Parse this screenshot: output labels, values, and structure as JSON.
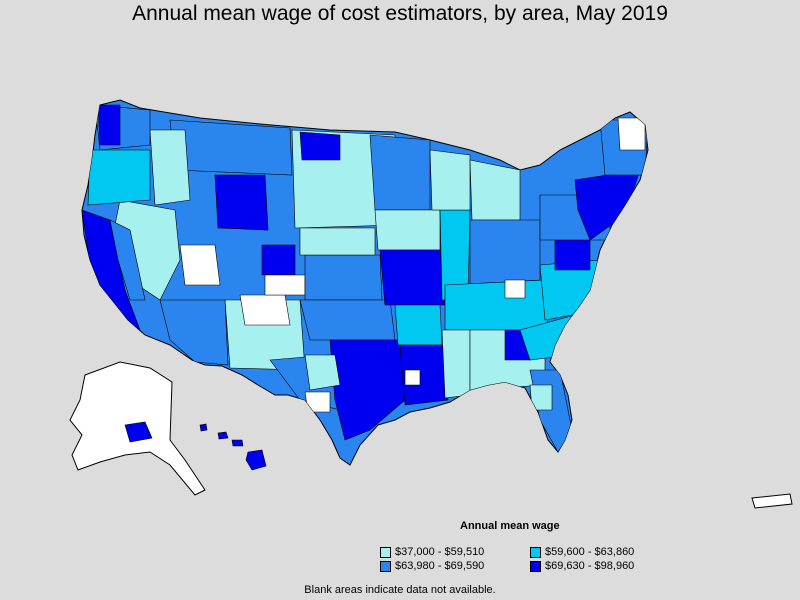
{
  "title": "Annual mean wage of cost estimators, by area, May 2019",
  "legend": {
    "title": "Annual mean wage",
    "items": [
      {
        "label": "$37,000 - $59,510",
        "color": "#a6f0f0"
      },
      {
        "label": "$59,600 - $63,860",
        "color": "#00c8f0"
      },
      {
        "label": "$63,980 - $69,590",
        "color": "#2a86ee"
      },
      {
        "label": "$69,630 - $98,960",
        "color": "#0000f0"
      }
    ]
  },
  "footnote": "Blank areas indicate data not available.",
  "colors": {
    "background": "#dcdcdc",
    "no_data": "#ffffff",
    "border": "#000000"
  }
}
